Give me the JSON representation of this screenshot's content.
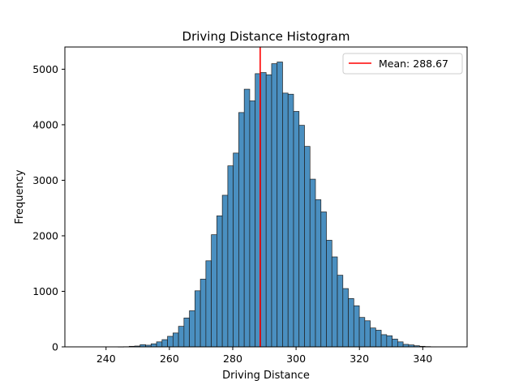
{
  "chart_data": {
    "type": "bar",
    "title": "Driving Distance Histogram",
    "xlabel": "Driving Distance",
    "ylabel": "Frequency",
    "xlim": [
      227,
      354
    ],
    "ylim": [
      0,
      5400
    ],
    "xticks": [
      240,
      260,
      280,
      300,
      320,
      340
    ],
    "yticks": [
      0,
      1000,
      2000,
      3000,
      4000,
      5000
    ],
    "bin_start": 230.0,
    "bin_width": 1.73,
    "bin_counts": [
      0,
      0,
      0,
      0,
      0,
      0,
      0,
      0,
      1,
      3,
      10,
      15,
      40,
      30,
      55,
      90,
      130,
      190,
      250,
      370,
      520,
      650,
      1010,
      1220,
      1550,
      2020,
      2360,
      2730,
      3260,
      3490,
      4220,
      4640,
      4430,
      4920,
      4940,
      4900,
      5100,
      5130,
      4570,
      4550,
      4240,
      3990,
      3610,
      3020,
      2650,
      2430,
      1920,
      1620,
      1290,
      1050,
      870,
      740,
      530,
      470,
      340,
      300,
      220,
      200,
      140,
      90,
      45,
      35,
      20,
      10,
      5,
      2,
      0,
      0,
      0,
      0,
      0
    ],
    "bar_color": "#4a8fc0",
    "mean": 288.67,
    "mean_line_color": "#ff0000",
    "legend": {
      "label": "Mean: 288.67",
      "placement": "upper right"
    },
    "grid": false
  }
}
